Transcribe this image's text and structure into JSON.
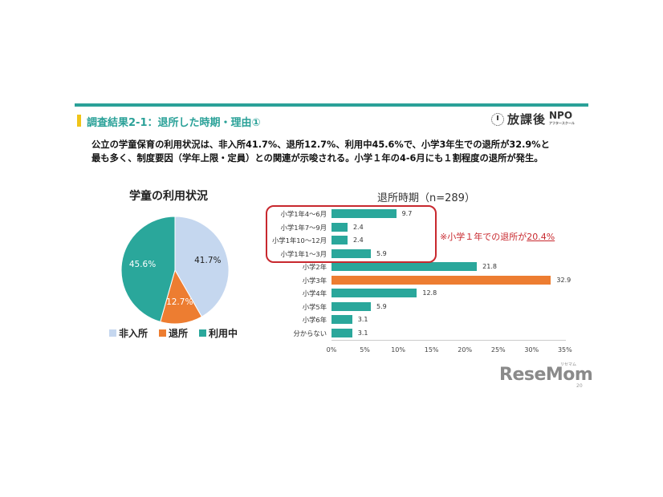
{
  "header": {
    "title": "調査結果2-1：退所した時期・理由①",
    "logo_text": "放課後",
    "logo_npo": "NPO",
    "logo_sub": "アフタースクール",
    "accent_color": "#2aa198",
    "bar_color": "#f0c419"
  },
  "summary": {
    "line1": "公立の学童保育の利用状況は、非入所41.7%、退所12.7%、利用中45.6%で、小学3年生での退所が32.9%と",
    "line2": "最も多く、制度要因（学年上限・定員）との関連が示唆される。小学１年の4-6月にも１割程度の退所が発生。"
  },
  "note": {
    "prefix": "※小学１年での退所が",
    "value": "20.4%"
  },
  "watermark": {
    "brand": "ReseMom",
    "kana": "リセマム",
    "page": "20"
  },
  "chart_data": [
    {
      "type": "pie",
      "title": "学童の利用状況",
      "categories": [
        "非入所",
        "退所",
        "利用中"
      ],
      "values": [
        41.7,
        12.7,
        45.6
      ],
      "labels": [
        "41.7%",
        "12.7%",
        "45.6%"
      ],
      "colors": [
        "#c5d7ef",
        "#ed7d31",
        "#2aa79b"
      ],
      "legend_position": "bottom"
    },
    {
      "type": "bar",
      "orientation": "horizontal",
      "title": "退所時期（n=289）",
      "categories": [
        "小学1年4～6月",
        "小学1年7～9月",
        "小学1年10～12月",
        "小学1年1～3月",
        "小学2年",
        "小学3年",
        "小学4年",
        "小学5年",
        "小学6年",
        "分からない"
      ],
      "values": [
        9.7,
        2.4,
        2.4,
        5.9,
        21.8,
        32.9,
        12.8,
        5.9,
        3.1,
        3.1
      ],
      "value_labels": [
        "9.7",
        "2.4",
        "2.4",
        "5.9",
        "21.8",
        "32.9",
        "12.8",
        "5.9",
        "3.1",
        "3.1"
      ],
      "highlight_index": 5,
      "colors": {
        "default": "#2aa79b",
        "highlight": "#ed7d31"
      },
      "xlabel": "",
      "ylabel": "",
      "xlim": [
        0,
        35
      ],
      "xticks": [
        "0%",
        "5%",
        "10%",
        "15%",
        "20%",
        "25%",
        "30%",
        "35%"
      ],
      "grid": false
    }
  ]
}
